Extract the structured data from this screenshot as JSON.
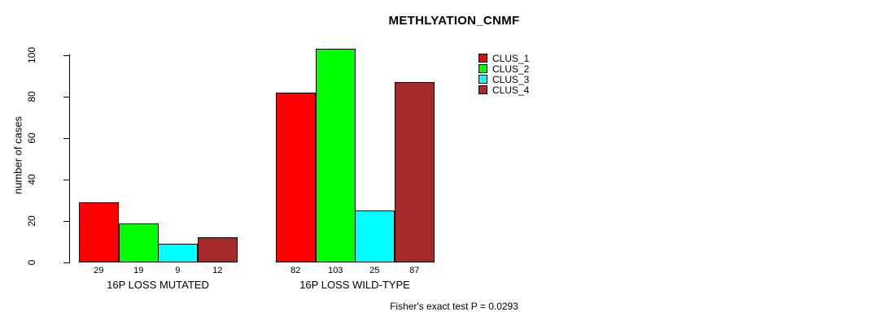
{
  "chart_data": {
    "type": "bar",
    "title": "METHLYATION_CNMF",
    "ylabel": "number of cases",
    "xlabel": "",
    "ylim": [
      0,
      100
    ],
    "yticks": [
      0,
      20,
      40,
      60,
      80,
      100
    ],
    "grid": false,
    "legend_position": "top-right",
    "categories": [
      "16P LOSS MUTATED",
      "16P LOSS WILD-TYPE"
    ],
    "series": [
      {
        "name": "CLUS_1",
        "color": "#FF0000",
        "values": [
          29,
          82
        ]
      },
      {
        "name": "CLUS_2",
        "color": "#00FF00",
        "values": [
          19,
          103
        ]
      },
      {
        "name": "CLUS_3",
        "color": "#00FFFF",
        "values": [
          9,
          25
        ]
      },
      {
        "name": "CLUS_4",
        "color": "#A52A2A",
        "values": [
          12,
          87
        ]
      }
    ],
    "bar_value_labels": [
      [
        29,
        19,
        9,
        12
      ],
      [
        82,
        103,
        25,
        87
      ]
    ],
    "footer": "Fisher's exact test P = 0.0293"
  },
  "colors": {
    "background": "#FFFFFF",
    "text": "#000000",
    "bar_border": "#000000",
    "axis": "#000000"
  }
}
